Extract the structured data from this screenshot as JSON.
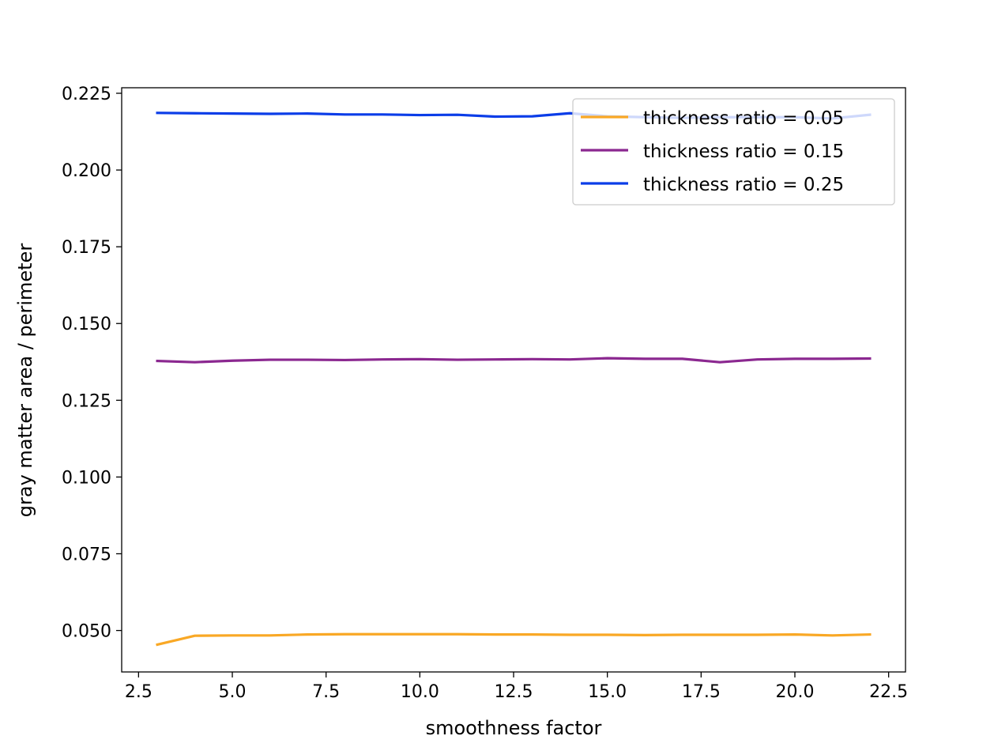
{
  "chart_data": {
    "type": "line",
    "title": "",
    "xlabel": "smoothness factor",
    "ylabel": "gray matter area / perimeter",
    "xlim": [
      2.05,
      22.95
    ],
    "ylim": [
      0.0365,
      0.2268
    ],
    "xticks": [
      2.5,
      5.0,
      7.5,
      10.0,
      12.5,
      15.0,
      17.5,
      20.0,
      22.5
    ],
    "xtick_labels": [
      "2.5",
      "5.0",
      "7.5",
      "10.0",
      "12.5",
      "15.0",
      "17.5",
      "20.0",
      "22.5"
    ],
    "yticks": [
      0.05,
      0.075,
      0.1,
      0.125,
      0.15,
      0.175,
      0.2,
      0.225
    ],
    "ytick_labels": [
      "0.050",
      "0.075",
      "0.100",
      "0.125",
      "0.150",
      "0.175",
      "0.200",
      "0.225"
    ],
    "grid": false,
    "legend_position": "upper right",
    "x": [
      3,
      4,
      5,
      6,
      7,
      8,
      9,
      10,
      11,
      12,
      13,
      14,
      15,
      16,
      17,
      18,
      19,
      20,
      21,
      22
    ],
    "series": [
      {
        "name": "thickness ratio = 0.05",
        "color": "#f9a825",
        "values": [
          0.0454,
          0.0483,
          0.0484,
          0.0484,
          0.0487,
          0.0488,
          0.0488,
          0.0488,
          0.0488,
          0.0487,
          0.0487,
          0.0486,
          0.0486,
          0.0485,
          0.0486,
          0.0486,
          0.0486,
          0.0487,
          0.0484,
          0.0487
        ]
      },
      {
        "name": "thickness ratio = 0.15",
        "color": "#8b2890",
        "values": [
          0.1378,
          0.1374,
          0.1379,
          0.1382,
          0.1382,
          0.1381,
          0.1383,
          0.1384,
          0.1382,
          0.1383,
          0.1384,
          0.1383,
          0.1387,
          0.1385,
          0.1385,
          0.1374,
          0.1383,
          0.1385,
          0.1385,
          0.1386
        ]
      },
      {
        "name": "thickness ratio = 0.25",
        "color": "#0b3de8",
        "values": [
          0.2186,
          0.2185,
          0.2184,
          0.2183,
          0.2184,
          0.2181,
          0.2181,
          0.2179,
          0.218,
          0.2174,
          0.2175,
          0.2185,
          0.2175,
          0.2172,
          0.217,
          0.2172,
          0.2172,
          0.2172,
          0.2168,
          0.218
        ]
      }
    ]
  }
}
